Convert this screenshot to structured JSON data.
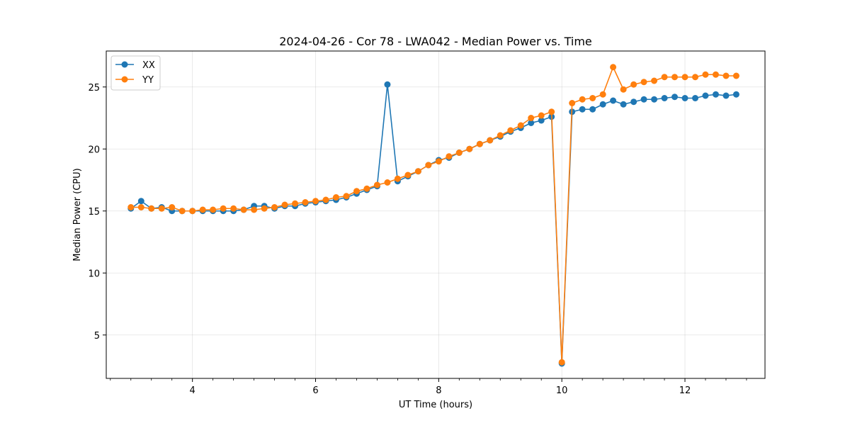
{
  "chart_data": {
    "type": "line",
    "title": "2024-04-26 - Cor 78 - LWA042 - Median Power vs. Time",
    "xlabel": "UT Time (hours)",
    "ylabel": "Median Power (CPU)",
    "xlim": [
      2.6,
      13.3
    ],
    "ylim": [
      1.5,
      27.9
    ],
    "xticks": [
      4,
      6,
      8,
      10,
      12
    ],
    "yticks": [
      5,
      10,
      15,
      20,
      25
    ],
    "xminor_step": 0.333333,
    "grid": true,
    "legend_position": "top-left",
    "x": [
      3.0,
      3.167,
      3.333,
      3.5,
      3.667,
      3.833,
      4.0,
      4.167,
      4.333,
      4.5,
      4.667,
      4.833,
      5.0,
      5.167,
      5.333,
      5.5,
      5.667,
      5.833,
      6.0,
      6.167,
      6.333,
      6.5,
      6.667,
      6.833,
      7.0,
      7.167,
      7.333,
      7.5,
      7.667,
      7.833,
      8.0,
      8.167,
      8.333,
      8.5,
      8.667,
      8.833,
      9.0,
      9.167,
      9.333,
      9.5,
      9.667,
      9.833,
      10.0,
      10.167,
      10.333,
      10.5,
      10.667,
      10.833,
      11.0,
      11.167,
      11.333,
      11.5,
      11.667,
      11.833,
      12.0,
      12.167,
      12.333,
      12.5,
      12.667,
      12.833
    ],
    "series": [
      {
        "name": "XX",
        "color": "#1f77b4",
        "values": [
          15.2,
          15.8,
          15.2,
          15.3,
          15.0,
          15.0,
          15.0,
          15.0,
          15.0,
          15.0,
          15.0,
          15.1,
          15.4,
          15.4,
          15.2,
          15.4,
          15.4,
          15.6,
          15.7,
          15.8,
          15.9,
          16.1,
          16.4,
          16.7,
          17.0,
          25.2,
          17.4,
          17.8,
          18.2,
          18.7,
          19.1,
          19.3,
          19.7,
          20.0,
          20.4,
          20.7,
          21.0,
          21.4,
          21.7,
          22.1,
          22.3,
          22.6,
          2.7,
          23.0,
          23.2,
          23.2,
          23.6,
          23.9,
          23.6,
          23.8,
          24.0,
          24.0,
          24.1,
          24.2,
          24.1,
          24.1,
          24.3,
          24.4,
          24.3,
          24.4
        ]
      },
      {
        "name": "YY",
        "color": "#ff7f0e",
        "values": [
          15.3,
          15.3,
          15.2,
          15.2,
          15.3,
          15.0,
          15.0,
          15.1,
          15.1,
          15.2,
          15.2,
          15.1,
          15.1,
          15.2,
          15.3,
          15.5,
          15.6,
          15.7,
          15.8,
          15.9,
          16.1,
          16.2,
          16.6,
          16.8,
          17.1,
          17.3,
          17.6,
          17.9,
          18.2,
          18.7,
          19.0,
          19.4,
          19.7,
          20.0,
          20.4,
          20.7,
          21.1,
          21.5,
          21.9,
          22.5,
          22.7,
          23.0,
          2.8,
          23.7,
          24.0,
          24.1,
          24.4,
          26.6,
          24.8,
          25.2,
          25.4,
          25.5,
          25.8,
          25.8,
          25.8,
          25.8,
          26.0,
          26.0,
          25.9,
          25.9
        ]
      }
    ]
  }
}
